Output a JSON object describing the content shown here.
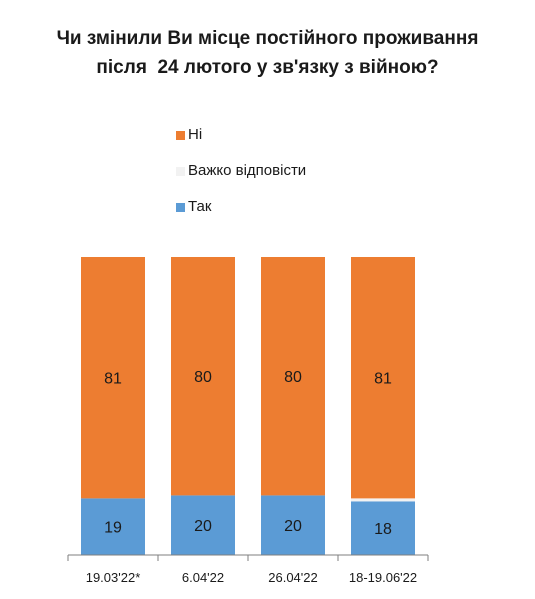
{
  "chart_data": {
    "type": "bar",
    "stacked": true,
    "title_lines": [
      "Чи змінили Ви місце постійного проживання",
      "після  24 лютого у зв'язку з війною?"
    ],
    "categories": [
      "19.03'22*",
      "6.04'22",
      "26.04'22",
      "18-19.06'22"
    ],
    "series": [
      {
        "name": "Так",
        "values": [
          19,
          20,
          20,
          18
        ],
        "color": "#5b9bd5"
      },
      {
        "name": "Важко відповісти",
        "values": [
          0,
          0,
          0,
          1
        ],
        "color": "#f2f2f2"
      },
      {
        "name": "Ні",
        "values": [
          81,
          80,
          80,
          81
        ],
        "color": "#ed7d31"
      }
    ],
    "legend": [
      {
        "name": "Ні",
        "color": "#ed7d31"
      },
      {
        "name": "Важко відповісти",
        "color": "#f2f2f2"
      },
      {
        "name": "Так",
        "color": "#5b9bd5"
      }
    ],
    "ylim": [
      0,
      100
    ],
    "grid": false,
    "legend_position": "top"
  }
}
